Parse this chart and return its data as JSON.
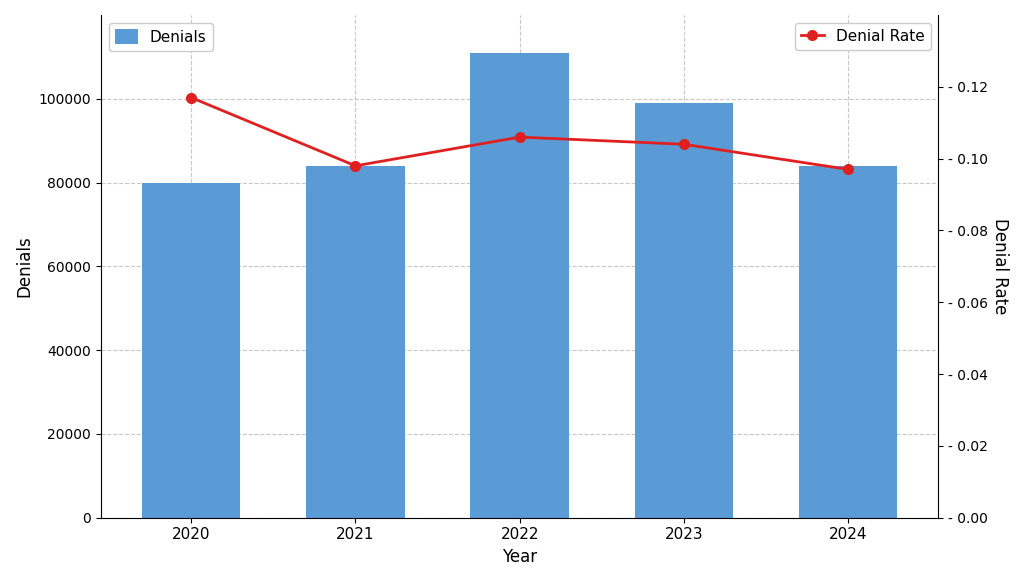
{
  "years": [
    2020,
    2021,
    2022,
    2023,
    2024
  ],
  "denials": [
    80000,
    84000,
    111000,
    99000,
    84000
  ],
  "denial_rate": [
    0.117,
    0.098,
    0.106,
    0.104,
    0.097
  ],
  "bar_color": "#5b9bd5",
  "line_color": "#e02020",
  "xlabel": "Year",
  "ylabel_left": "Denials",
  "ylabel_right": "Denial Rate",
  "legend_denials": "Denials",
  "legend_rate": "Denial Rate",
  "ylim_left": [
    0,
    120000
  ],
  "ylim_right": [
    0,
    0.14
  ],
  "yticks_left": [
    0,
    20000,
    40000,
    60000,
    80000,
    100000
  ],
  "yticks_right": [
    0.0,
    0.02,
    0.04,
    0.06,
    0.08,
    0.1,
    0.12
  ],
  "background_color": "#ffffff",
  "grid_color": "#c8c8c8"
}
